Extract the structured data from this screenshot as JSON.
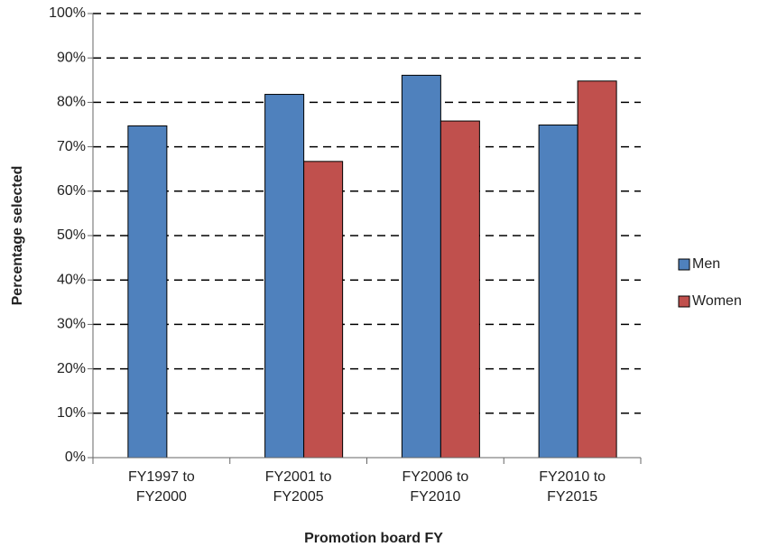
{
  "chart_data": {
    "type": "bar",
    "categories": [
      "FY1997 to FY2000",
      "FY2001 to FY2005",
      "FY2006 to FY2010",
      "FY2010 to FY2015"
    ],
    "series": [
      {
        "name": "Men",
        "color": "#4f81bd",
        "values": [
          74.7,
          81.8,
          86.1,
          74.9
        ]
      },
      {
        "name": "Women",
        "color": "#c0504d",
        "values": [
          null,
          66.7,
          75.8,
          84.8
        ]
      }
    ],
    "ylim": [
      0,
      100
    ],
    "yticks": [
      {
        "value": 0,
        "label": "0%"
      },
      {
        "value": 10,
        "label": "10%"
      },
      {
        "value": 20,
        "label": "20%"
      },
      {
        "value": 30,
        "label": "30%"
      },
      {
        "value": 40,
        "label": "40%"
      },
      {
        "value": 50,
        "label": "50%"
      },
      {
        "value": 60,
        "label": "60%"
      },
      {
        "value": 70,
        "label": "70%"
      },
      {
        "value": 80,
        "label": "80%"
      },
      {
        "value": 90,
        "label": "90%"
      },
      {
        "value": 100,
        "label": "100%"
      }
    ],
    "xlabel": "Promotion board FY",
    "ylabel": "Percentage selected",
    "grid": true,
    "legend": "right"
  }
}
